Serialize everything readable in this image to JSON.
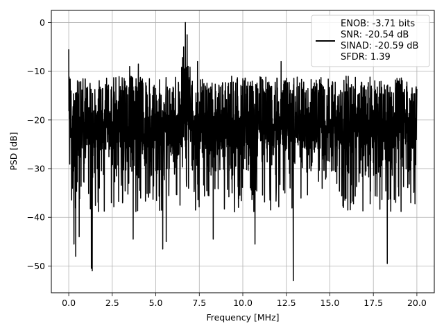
{
  "chart_data": {
    "type": "line",
    "title": "",
    "xlabel": "Frequency [MHz]",
    "ylabel": "PSD [dB]",
    "xlim": [
      -1.0,
      21.0
    ],
    "ylim": [
      -55.5,
      2.5
    ],
    "xticks": [
      0.0,
      2.5,
      5.0,
      7.5,
      10.0,
      12.5,
      15.0,
      17.5,
      20.0
    ],
    "xtick_labels": [
      "0.0",
      "2.5",
      "5.0",
      "7.5",
      "10.0",
      "12.5",
      "15.0",
      "17.5",
      "20.0"
    ],
    "yticks": [
      0,
      -10,
      -20,
      -30,
      -40,
      -50
    ],
    "ytick_labels": [
      "0",
      "−10",
      "−20",
      "−30",
      "−40",
      "−50"
    ],
    "grid": true,
    "legend_position": "top-right",
    "series": [
      {
        "color": "#000000",
        "legend_lines": [
          "ENOB: -3.71 bits",
          "SNR: -20.54 dB",
          "SINAD: -20.59 dB",
          "SFDR: 1.39"
        ],
        "noise_floor_db": -22,
        "noise_band_db": [
          -31,
          -13
        ],
        "x_range": [
          0.0,
          20.0
        ],
        "peaks": [
          {
            "x": 0.0,
            "y": -5.5
          },
          {
            "x": 6.7,
            "y": 0.0
          },
          {
            "x": 6.8,
            "y": -2.5
          },
          {
            "x": 6.6,
            "y": -5.0
          },
          {
            "x": 4.0,
            "y": -8.5
          },
          {
            "x": 3.5,
            "y": -9.0
          },
          {
            "x": 7.4,
            "y": -8.0
          },
          {
            "x": 12.2,
            "y": -8.0
          }
        ],
        "dips": [
          {
            "x": 0.3,
            "y": -45.5
          },
          {
            "x": 0.4,
            "y": -48.0
          },
          {
            "x": 0.6,
            "y": -44.0
          },
          {
            "x": 1.3,
            "y": -50.5
          },
          {
            "x": 1.35,
            "y": -51.0
          },
          {
            "x": 3.7,
            "y": -44.5
          },
          {
            "x": 5.4,
            "y": -46.5
          },
          {
            "x": 5.6,
            "y": -45.0
          },
          {
            "x": 8.3,
            "y": -44.5
          },
          {
            "x": 10.7,
            "y": -45.5
          },
          {
            "x": 12.9,
            "y": -53.0
          },
          {
            "x": 18.3,
            "y": -49.5
          }
        ]
      }
    ]
  }
}
